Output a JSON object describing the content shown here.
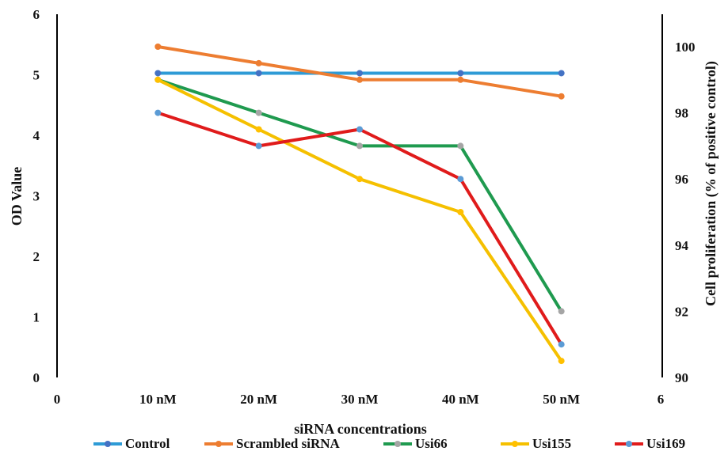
{
  "chart_data": {
    "type": "line",
    "categories": [
      "10 nM",
      "20 nM",
      "30 nM",
      "40 nM",
      "50 nM"
    ],
    "x_values": [
      1,
      2,
      3,
      4,
      5
    ],
    "xlim": [
      0,
      6
    ],
    "x_edge_labels": [
      "0",
      "6"
    ],
    "xlabel": "siRNA concentrations",
    "ylabel": "OD Value",
    "ylim": [
      0,
      6
    ],
    "y_ticks": [
      "0",
      "1",
      "2",
      "3",
      "4",
      "5",
      "6"
    ],
    "y2label": "Cell proliferation (% of positive control)",
    "y2lim": [
      90,
      101
    ],
    "y2_ticks": [
      "90",
      "92",
      "94",
      "96",
      "98",
      "100"
    ],
    "grid": false,
    "legend_position": "bottom",
    "series": [
      {
        "name": "Control",
        "line_color": "#2e9bd6",
        "marker_color": "#4472c4",
        "values": [
          99.2,
          99.2,
          99.2,
          99.2,
          99.2
        ]
      },
      {
        "name": "Scrambled siRNA",
        "line_color": "#ed7d31",
        "marker_color": "#ed7d31",
        "values": [
          100,
          99.5,
          99,
          99,
          98.5
        ]
      },
      {
        "name": "Usi66",
        "line_color": "#1f9a4f",
        "marker_color": "#a5a5a5",
        "values": [
          99,
          98,
          97,
          97,
          92
        ]
      },
      {
        "name": "Usi155",
        "line_color": "#f5c000",
        "marker_color": "#ffc000",
        "values": [
          99,
          97.5,
          96,
          95,
          90.5
        ]
      },
      {
        "name": "Usi169",
        "line_color": "#e01b1b",
        "marker_color": "#5b9bd5",
        "values": [
          98,
          97,
          97.5,
          96,
          91
        ]
      }
    ]
  }
}
